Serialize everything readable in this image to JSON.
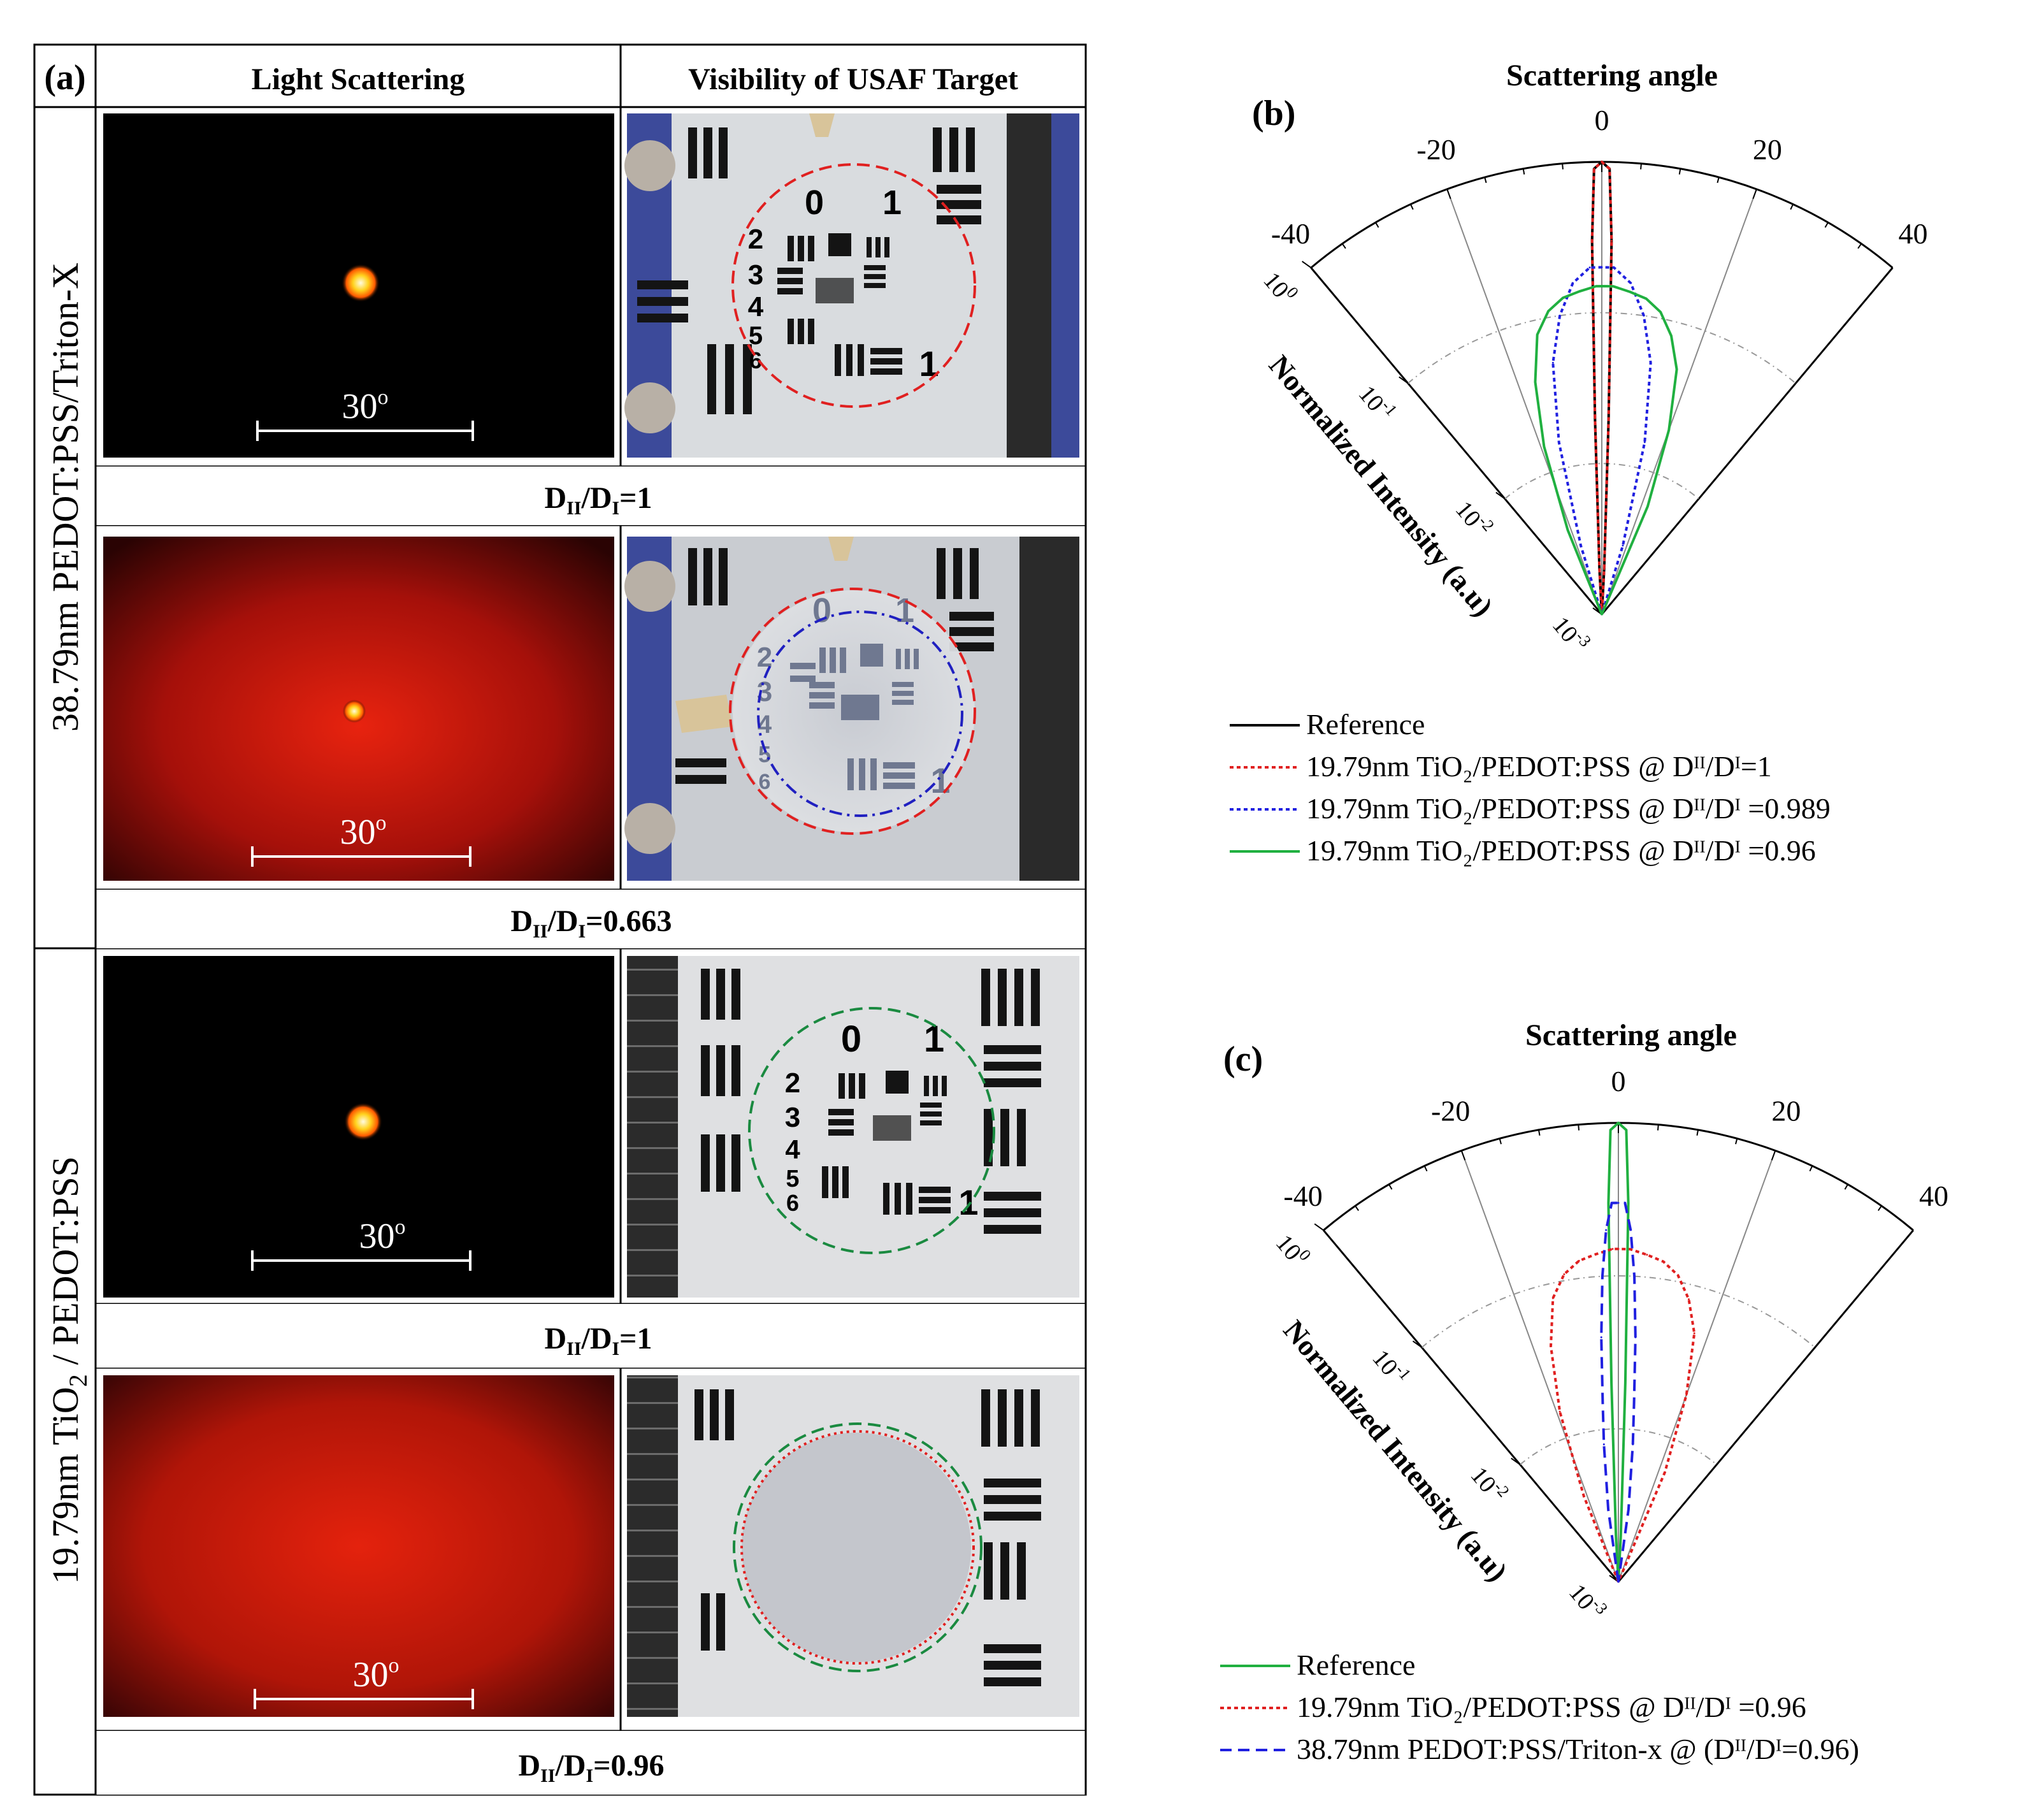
{
  "panel_a": {
    "label": "(a)",
    "col_headers": [
      "Light Scattering",
      "Visibility of USAF Target"
    ],
    "row_group_labels": {
      "g1": {
        "text": "38.79nm PEDOT:PSS/Triton-X"
      },
      "g2": {
        "pre": "19.79nm TiO",
        "sub": "2",
        "post": " / PEDOT:PSS"
      }
    },
    "angle_label": "30",
    "angle_label_sup": "o",
    "ratio_labels": [
      "=1",
      "=0.663",
      "=1",
      "=0.96"
    ],
    "ratio_prefix": {
      "d": "D",
      "sub1": "II",
      "slash": "/D",
      "sub2": "I"
    },
    "usaf_numbers": [
      "0",
      "1",
      "2",
      "3",
      "4",
      "5",
      "6",
      "1"
    ]
  },
  "panel_b": {
    "label": "(b)",
    "title": "Scattering angle",
    "angle_ticks": [
      "-40",
      "-20",
      "0",
      "20",
      "40"
    ],
    "radial_ticks": [
      {
        "base": "10",
        "exp": "0"
      },
      {
        "base": "10",
        "exp": "-1"
      },
      {
        "base": "10",
        "exp": "-2"
      },
      {
        "base": "10",
        "exp": "-3"
      }
    ],
    "axis_label": "Normalized Intensity (a.u)",
    "legend": [
      {
        "text": "Reference",
        "color": "#000000",
        "style": "solid"
      },
      {
        "text": "19.79nm  TiO₂/PEDOT:PSS  @ Dᴵᴵ/Dᴵ=1",
        "color": "#e02020",
        "style": "dotted"
      },
      {
        "text": "19.79nm  TiO₂/PEDOT:PSS  @ Dᴵᴵ/Dᴵ =0.989",
        "color": "#2020e0",
        "style": "dotted"
      },
      {
        "text": "19.79nm  TiO₂/PEDOT:PSS  @ Dᴵᴵ/Dᴵ =0.96",
        "color": "#20b040",
        "style": "solid"
      }
    ]
  },
  "panel_c": {
    "label": "(c)",
    "title": "Scattering angle",
    "angle_ticks": [
      "-40",
      "-20",
      "0",
      "20",
      "40"
    ],
    "radial_ticks": [
      {
        "base": "10",
        "exp": "0"
      },
      {
        "base": "10",
        "exp": "-1"
      },
      {
        "base": "10",
        "exp": "-2"
      },
      {
        "base": "10",
        "exp": "-3"
      }
    ],
    "axis_label": "Normalized Intensity (a.u)",
    "legend": [
      {
        "text": "Reference",
        "color": "#20b040",
        "style": "solid"
      },
      {
        "text": "19.79nm  TiO₂/PEDOT:PSS  @ Dᴵᴵ/Dᴵ =0.96",
        "color": "#e02020",
        "style": "dotted"
      },
      {
        "text": "38.79nm  PEDOT:PSS/Triton-x  @ (Dᴵᴵ/Dᴵ=0.96)",
        "color": "#2020e0",
        "style": "dashed"
      }
    ]
  },
  "chart_data": [
    {
      "type": "polar-line",
      "panel": "b",
      "title": "Scattering angle",
      "angle_range": [
        -40,
        40
      ],
      "r_scale": "log",
      "r_range": [
        0.001,
        1
      ],
      "r_label": "Normalized Intensity (a.u)",
      "series": [
        {
          "name": "Reference",
          "color": "#000000",
          "style": "solid",
          "angle": [
            -4,
            -3,
            -2,
            -1.5,
            -1,
            0,
            1,
            1.5,
            2,
            3,
            4
          ],
          "intensity": [
            0.001,
            0.002,
            0.02,
            0.3,
            0.9,
            1.0,
            0.9,
            0.3,
            0.02,
            0.002,
            0.001
          ]
        },
        {
          "name": "19.79nm TiO2/PEDOT:PSS @ DII/DI=1",
          "color": "#e02020",
          "style": "dotted",
          "angle": [
            -4,
            -3,
            -2,
            -1.5,
            -1,
            0,
            1,
            1.5,
            2,
            3,
            4
          ],
          "intensity": [
            0.001,
            0.002,
            0.02,
            0.3,
            0.9,
            1.0,
            0.9,
            0.3,
            0.02,
            0.002,
            0.001
          ]
        },
        {
          "name": "19.79nm TiO2/PEDOT:PSS @ DII/DI=0.989",
          "color": "#2020e0",
          "style": "dotted",
          "angle": [
            -20,
            -17,
            -14,
            -11,
            -8,
            -5,
            -2,
            0,
            2,
            5,
            8,
            11,
            14,
            17,
            20
          ],
          "intensity": [
            0.001,
            0.003,
            0.015,
            0.05,
            0.1,
            0.16,
            0.2,
            0.2,
            0.2,
            0.16,
            0.1,
            0.05,
            0.015,
            0.003,
            0.001
          ]
        },
        {
          "name": "19.79nm TiO2/PEDOT:PSS @ DII/DI=0.96",
          "color": "#20b040",
          "style": "solid",
          "angle": [
            -25,
            -22,
            -19,
            -16,
            -13,
            -10,
            -7,
            -4,
            -1,
            0,
            2,
            5,
            8,
            11,
            14,
            17,
            20,
            23,
            25
          ],
          "intensity": [
            0.001,
            0.004,
            0.015,
            0.04,
            0.08,
            0.11,
            0.13,
            0.14,
            0.15,
            0.15,
            0.15,
            0.14,
            0.13,
            0.11,
            0.08,
            0.05,
            0.02,
            0.006,
            0.001
          ]
        }
      ]
    },
    {
      "type": "polar-line",
      "panel": "c",
      "title": "Scattering angle",
      "angle_range": [
        -40,
        40
      ],
      "r_scale": "log",
      "r_range": [
        0.001,
        1
      ],
      "r_label": "Normalized Intensity (a.u)",
      "series": [
        {
          "name": "Reference",
          "color": "#20b040",
          "style": "solid",
          "angle": [
            -4,
            -3,
            -2,
            -1.5,
            -1,
            0,
            1,
            1.5,
            2,
            3,
            4
          ],
          "intensity": [
            0.001,
            0.002,
            0.02,
            0.3,
            0.9,
            1.0,
            0.9,
            0.3,
            0.02,
            0.002,
            0.001
          ]
        },
        {
          "name": "19.79nm TiO2/PEDOT:PSS @ DII/DI=0.96",
          "color": "#e02020",
          "style": "dotted",
          "angle": [
            -25,
            -22,
            -19,
            -16,
            -13,
            -10,
            -7,
            -4,
            -1,
            0,
            2,
            5,
            8,
            11,
            14,
            17,
            20,
            23,
            25
          ],
          "intensity": [
            0.001,
            0.004,
            0.015,
            0.04,
            0.08,
            0.11,
            0.13,
            0.14,
            0.15,
            0.15,
            0.15,
            0.14,
            0.13,
            0.11,
            0.08,
            0.05,
            0.02,
            0.006,
            0.001
          ]
        },
        {
          "name": "38.79nm PEDOT:PSS/Triton-x @ (DII/DI=0.96)",
          "color": "#2020e0",
          "style": "dashed",
          "angle": [
            -10,
            -8,
            -6,
            -5,
            -4,
            -3,
            -2,
            -1,
            0,
            1,
            2,
            3,
            4,
            5,
            6,
            8,
            10
          ],
          "intensity": [
            0.001,
            0.003,
            0.008,
            0.015,
            0.04,
            0.1,
            0.2,
            0.3,
            0.3,
            0.3,
            0.2,
            0.1,
            0.04,
            0.015,
            0.008,
            0.003,
            0.001
          ]
        }
      ]
    }
  ]
}
